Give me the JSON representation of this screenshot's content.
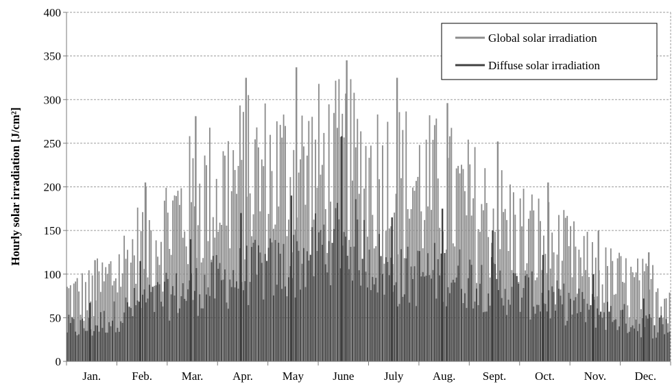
{
  "chart_data": {
    "type": "bar",
    "title": "",
    "xlabel": "",
    "ylabel": "Hourly solar irradiation  [J/cm²]",
    "ylim": [
      0,
      400
    ],
    "yticks": [
      0,
      50,
      100,
      150,
      200,
      250,
      300,
      350,
      400
    ],
    "grid": true,
    "legend_position": "top-right",
    "categories": [
      "Jan.",
      "Feb.",
      "Mar.",
      "Apr.",
      "May",
      "June",
      "July",
      "Aug.",
      "Sept.",
      "Oct.",
      "Nov.",
      "Dec."
    ],
    "series": [
      {
        "name": "Global solar irradiation",
        "color": "#8c8c8c",
        "values": [
          116,
          205,
          281,
          325,
          337,
          345,
          325,
          296,
          252,
          205,
          150,
          125
        ]
      },
      {
        "name": "Diffuse solar irradiation",
        "color": "#404040",
        "values": [
          67,
          115,
          140,
          170,
          190,
          258,
          165,
          175,
          150,
          122,
          100,
          72
        ]
      }
    ]
  }
}
